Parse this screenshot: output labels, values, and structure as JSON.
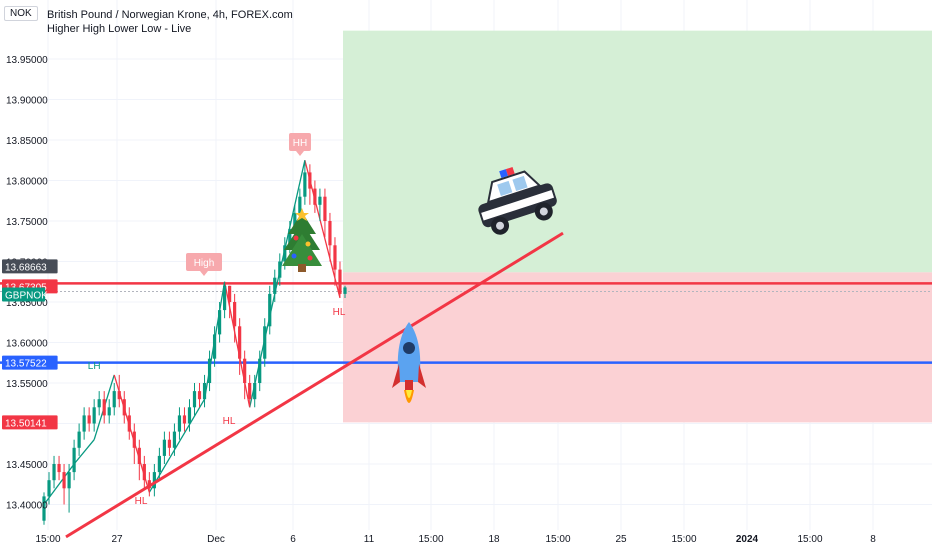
{
  "header": {
    "currency_tag": "NOK",
    "title": "British Pound / Norwegian Krone, 4h, FOREX.com",
    "subtitle": "Higher High Lower Low - Live"
  },
  "chart_data": {
    "type": "candlestick",
    "symbol": "GBPNOK",
    "interval": "4h",
    "y_ticks": [
      13.4,
      13.45,
      13.5,
      13.55,
      13.6,
      13.65,
      13.7,
      13.75,
      13.8,
      13.85,
      13.9,
      13.95
    ],
    "y_tick_labels": [
      "13.40000",
      "13.45000",
      "13.50000",
      "13.55000",
      "13.60000",
      "13.65000",
      "13.70000",
      "13.75000",
      "13.80000",
      "13.85000",
      "13.90000",
      "13.95000"
    ],
    "x_tick_labels": [
      "15:00",
      "27",
      "Dec",
      "6",
      "11",
      "15:00",
      "18",
      "15:00",
      "25",
      "15:00",
      "2024",
      "15:00",
      "8"
    ],
    "price_badges": [
      {
        "label": "13.68663",
        "value": 13.68663,
        "color": "#474d57"
      },
      {
        "label": "13.67305",
        "value": 13.67305,
        "color": "#f23645"
      },
      {
        "label": "GBPNOK",
        "value": 13.663,
        "color": "#089981"
      },
      {
        "label": "13.57522",
        "value": 13.57522,
        "color": "#2962ff"
      },
      {
        "label": "13.50141",
        "value": 13.50141,
        "color": "#f23645"
      }
    ],
    "horizontal_lines": [
      {
        "value": 13.67305,
        "color": "#f23645"
      },
      {
        "value": 13.57522,
        "color": "#2962ff"
      }
    ],
    "zones": [
      {
        "name": "profit",
        "from": 13.68663,
        "to": 13.985,
        "color": "#d5efd6"
      },
      {
        "name": "loss",
        "from": 13.50141,
        "to": 13.68663,
        "color": "#fbd1d4"
      }
    ],
    "pivot_labels": [
      {
        "text": "LH",
        "value": 13.56,
        "color": "#089981"
      },
      {
        "text": "High",
        "value": 13.685,
        "color": "#f7a9ad"
      },
      {
        "text": "HH",
        "value": 13.835,
        "color": "#f7a9ad"
      },
      {
        "text": "HL",
        "value": 13.41,
        "color": "#f23645"
      },
      {
        "text": "HL",
        "value": 13.51,
        "color": "#f23645"
      },
      {
        "text": "HL",
        "value": 13.655,
        "color": "#f23645"
      }
    ],
    "trendline": {
      "from": 13.36,
      "to": 13.735,
      "color": "#f23645"
    },
    "zigzag_points": [
      13.4,
      13.45,
      13.48,
      13.56,
      13.415,
      13.53,
      13.675,
      13.52,
      13.66,
      13.825,
      13.655
    ],
    "candles": [
      [
        13.38,
        13.41,
        13.375,
        13.415
      ],
      [
        13.41,
        13.43,
        13.4,
        13.44
      ],
      [
        13.43,
        13.45,
        13.42,
        13.46
      ],
      [
        13.45,
        13.44,
        13.43,
        13.46
      ],
      [
        13.44,
        13.42,
        13.4,
        13.45
      ],
      [
        13.42,
        13.44,
        13.39,
        13.45
      ],
      [
        13.44,
        13.47,
        13.43,
        13.48
      ],
      [
        13.47,
        13.49,
        13.46,
        13.5
      ],
      [
        13.49,
        13.51,
        13.48,
        13.52
      ],
      [
        13.51,
        13.5,
        13.49,
        13.52
      ],
      [
        13.5,
        13.52,
        13.49,
        13.53
      ],
      [
        13.52,
        13.53,
        13.51,
        13.54
      ],
      [
        13.53,
        13.51,
        13.5,
        13.54
      ],
      [
        13.51,
        13.52,
        13.5,
        13.53
      ],
      [
        13.52,
        13.54,
        13.51,
        13.55
      ],
      [
        13.54,
        13.53,
        13.52,
        13.56
      ],
      [
        13.53,
        13.51,
        13.5,
        13.54
      ],
      [
        13.51,
        13.49,
        13.48,
        13.52
      ],
      [
        13.49,
        13.47,
        13.45,
        13.5
      ],
      [
        13.47,
        13.45,
        13.43,
        13.48
      ],
      [
        13.45,
        13.43,
        13.42,
        13.46
      ],
      [
        13.43,
        13.42,
        13.41,
        13.44
      ],
      [
        13.42,
        13.44,
        13.41,
        13.45
      ],
      [
        13.44,
        13.46,
        13.43,
        13.47
      ],
      [
        13.46,
        13.48,
        13.45,
        13.49
      ],
      [
        13.48,
        13.47,
        13.46,
        13.49
      ],
      [
        13.47,
        13.49,
        13.46,
        13.5
      ],
      [
        13.49,
        13.51,
        13.48,
        13.52
      ],
      [
        13.51,
        13.5,
        13.49,
        13.52
      ],
      [
        13.5,
        13.52,
        13.49,
        13.53
      ],
      [
        13.52,
        13.54,
        13.51,
        13.55
      ],
      [
        13.54,
        13.53,
        13.52,
        13.55
      ],
      [
        13.53,
        13.55,
        13.52,
        13.56
      ],
      [
        13.55,
        13.58,
        13.54,
        13.59
      ],
      [
        13.58,
        13.61,
        13.57,
        13.62
      ],
      [
        13.61,
        13.64,
        13.6,
        13.65
      ],
      [
        13.64,
        13.67,
        13.63,
        13.675
      ],
      [
        13.67,
        13.65,
        13.63,
        13.67
      ],
      [
        13.65,
        13.62,
        13.6,
        13.66
      ],
      [
        13.62,
        13.58,
        13.56,
        13.63
      ],
      [
        13.58,
        13.55,
        13.53,
        13.59
      ],
      [
        13.55,
        13.53,
        13.52,
        13.56
      ],
      [
        13.53,
        13.55,
        13.52,
        13.56
      ],
      [
        13.55,
        13.58,
        13.54,
        13.59
      ],
      [
        13.58,
        13.62,
        13.57,
        13.63
      ],
      [
        13.62,
        13.66,
        13.61,
        13.67
      ],
      [
        13.66,
        13.68,
        13.65,
        13.69
      ],
      [
        13.68,
        13.7,
        13.67,
        13.71
      ],
      [
        13.7,
        13.72,
        13.69,
        13.73
      ],
      [
        13.72,
        13.74,
        13.71,
        13.75
      ],
      [
        13.74,
        13.76,
        13.73,
        13.77
      ],
      [
        13.76,
        13.78,
        13.75,
        13.79
      ],
      [
        13.78,
        13.81,
        13.77,
        13.825
      ],
      [
        13.81,
        13.79,
        13.77,
        13.82
      ],
      [
        13.79,
        13.77,
        13.76,
        13.8
      ],
      [
        13.77,
        13.78,
        13.75,
        13.79
      ],
      [
        13.78,
        13.75,
        13.73,
        13.79
      ],
      [
        13.75,
        13.72,
        13.7,
        13.76
      ],
      [
        13.72,
        13.69,
        13.67,
        13.73
      ],
      [
        13.69,
        13.66,
        13.655,
        13.7
      ],
      [
        13.66,
        13.668,
        13.655,
        13.67
      ]
    ]
  }
}
